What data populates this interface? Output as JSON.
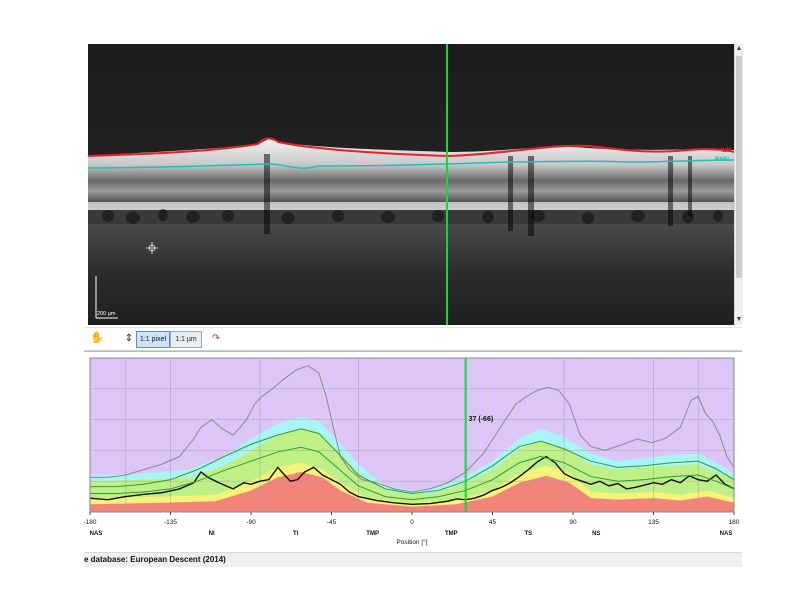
{
  "oct_view": {
    "layer_labels": {
      "ilm": "ILM",
      "rnfl": "RNFL"
    },
    "scale_bar_label": "200 µm",
    "colors": {
      "ilm_line": "#e8222a",
      "rnfl_line": "#19c4b4",
      "cursor_line": "#19d43c"
    }
  },
  "toolbar": {
    "hand_tool_icon": "hand-icon",
    "fit_icon": "vertical-fit-icon",
    "pixel_scale_label": "1:1 pixel",
    "micron_scale_label": "1:1 µm",
    "reset_icon": "reset-cursor-icon"
  },
  "chart_data": {
    "type": "line",
    "x_label": "Position [°]",
    "xlim": [
      -180,
      180
    ],
    "ylim": [
      0,
      200
    ],
    "x_ticks": [
      "-180",
      "-135",
      "-90",
      "-45",
      "0",
      "45",
      "90",
      "135",
      "180"
    ],
    "sector_labels": [
      {
        "x": -180,
        "label": "NAS"
      },
      {
        "x": -112,
        "label": "NI"
      },
      {
        "x": -65,
        "label": "TI"
      },
      {
        "x": -22,
        "label": "TMP"
      },
      {
        "x": 22,
        "label": "TMP"
      },
      {
        "x": 65,
        "label": "TS"
      },
      {
        "x": 103,
        "label": "NS"
      },
      {
        "x": 180,
        "label": "NAS"
      }
    ],
    "sector_dividers": [
      -160,
      -135,
      -85,
      -30,
      30,
      85,
      135,
      160
    ],
    "cursor": {
      "x": 30,
      "label": "37 (-66)"
    },
    "normative_bands": [
      {
        "name": "outside normal limits",
        "color": "#f2857a",
        "upper": [
          [
            -180,
            10
          ],
          [
            -140,
            12
          ],
          [
            -110,
            14
          ],
          [
            -90,
            28
          ],
          [
            -75,
            45
          ],
          [
            -62,
            52
          ],
          [
            -50,
            45
          ],
          [
            -40,
            28
          ],
          [
            -25,
            12
          ],
          [
            0,
            7
          ],
          [
            25,
            10
          ],
          [
            45,
            20
          ],
          [
            60,
            38
          ],
          [
            75,
            47
          ],
          [
            88,
            38
          ],
          [
            100,
            18
          ],
          [
            115,
            16
          ],
          [
            135,
            18
          ],
          [
            150,
            15
          ],
          [
            165,
            20
          ],
          [
            180,
            12
          ]
        ]
      },
      {
        "name": "borderline",
        "color": "#f7f27a",
        "upper": [
          [
            -180,
            18
          ],
          [
            -140,
            20
          ],
          [
            -110,
            22
          ],
          [
            -90,
            40
          ],
          [
            -75,
            58
          ],
          [
            -62,
            64
          ],
          [
            -50,
            55
          ],
          [
            -40,
            38
          ],
          [
            -25,
            18
          ],
          [
            0,
            12
          ],
          [
            25,
            16
          ],
          [
            45,
            28
          ],
          [
            60,
            50
          ],
          [
            75,
            60
          ],
          [
            88,
            50
          ],
          [
            100,
            26
          ],
          [
            115,
            24
          ],
          [
            135,
            26
          ],
          [
            150,
            22
          ],
          [
            165,
            28
          ],
          [
            180,
            18
          ]
        ]
      },
      {
        "name": "within normal limits",
        "color": "#bff088",
        "upper": [
          [
            -180,
            40
          ],
          [
            -150,
            42
          ],
          [
            -125,
            45
          ],
          [
            -105,
            60
          ],
          [
            -90,
            80
          ],
          [
            -75,
            100
          ],
          [
            -62,
            108
          ],
          [
            -52,
            102
          ],
          [
            -42,
            80
          ],
          [
            -30,
            50
          ],
          [
            -15,
            28
          ],
          [
            0,
            22
          ],
          [
            15,
            26
          ],
          [
            30,
            38
          ],
          [
            45,
            55
          ],
          [
            60,
            82
          ],
          [
            72,
            92
          ],
          [
            85,
            82
          ],
          [
            100,
            62
          ],
          [
            115,
            55
          ],
          [
            130,
            58
          ],
          [
            145,
            60
          ],
          [
            160,
            62
          ],
          [
            170,
            52
          ],
          [
            180,
            42
          ]
        ]
      },
      {
        "name": "above normal limits",
        "color": "#a9f4f4",
        "upper": [
          [
            -180,
            48
          ],
          [
            -150,
            50
          ],
          [
            -125,
            55
          ],
          [
            -105,
            72
          ],
          [
            -90,
            95
          ],
          [
            -75,
            115
          ],
          [
            -62,
            124
          ],
          [
            -52,
            118
          ],
          [
            -42,
            94
          ],
          [
            -30,
            62
          ],
          [
            -15,
            34
          ],
          [
            0,
            28
          ],
          [
            15,
            32
          ],
          [
            30,
            46
          ],
          [
            45,
            66
          ],
          [
            60,
            96
          ],
          [
            72,
            108
          ],
          [
            85,
            98
          ],
          [
            100,
            76
          ],
          [
            115,
            66
          ],
          [
            130,
            70
          ],
          [
            145,
            74
          ],
          [
            160,
            76
          ],
          [
            170,
            64
          ],
          [
            180,
            50
          ]
        ]
      }
    ],
    "background_color": "#dcc6f7",
    "series": [
      {
        "color": "#111111",
        "points": [
          [
            -180,
            18
          ],
          [
            -170,
            16
          ],
          [
            -160,
            20
          ],
          [
            -150,
            23
          ],
          [
            -140,
            25
          ],
          [
            -130,
            30
          ],
          [
            -122,
            38
          ],
          [
            -118,
            52
          ],
          [
            -114,
            45
          ],
          [
            -108,
            38
          ],
          [
            -100,
            30
          ],
          [
            -94,
            38
          ],
          [
            -90,
            36
          ],
          [
            -85,
            40
          ],
          [
            -80,
            42
          ],
          [
            -75,
            58
          ],
          [
            -72,
            50
          ],
          [
            -68,
            40
          ],
          [
            -64,
            42
          ],
          [
            -60,
            52
          ],
          [
            -55,
            58
          ],
          [
            -50,
            48
          ],
          [
            -45,
            42
          ],
          [
            -40,
            36
          ],
          [
            -35,
            26
          ],
          [
            -30,
            20
          ],
          [
            -20,
            15
          ],
          [
            -10,
            12
          ],
          [
            0,
            10
          ],
          [
            10,
            11
          ],
          [
            20,
            14
          ],
          [
            25,
            17
          ],
          [
            30,
            16
          ],
          [
            35,
            18
          ],
          [
            40,
            22
          ],
          [
            45,
            28
          ],
          [
            50,
            32
          ],
          [
            55,
            38
          ],
          [
            60,
            46
          ],
          [
            65,
            55
          ],
          [
            70,
            65
          ],
          [
            75,
            72
          ],
          [
            80,
            64
          ],
          [
            85,
            50
          ],
          [
            90,
            44
          ],
          [
            95,
            40
          ],
          [
            100,
            36
          ],
          [
            105,
            40
          ],
          [
            110,
            34
          ],
          [
            115,
            37
          ],
          [
            120,
            30
          ],
          [
            125,
            32
          ],
          [
            130,
            35
          ],
          [
            135,
            38
          ],
          [
            140,
            36
          ],
          [
            145,
            42
          ],
          [
            150,
            38
          ],
          [
            155,
            47
          ],
          [
            160,
            42
          ],
          [
            165,
            40
          ],
          [
            170,
            48
          ],
          [
            175,
            36
          ],
          [
            180,
            30
          ]
        ]
      },
      {
        "color": "#8a8a8a",
        "points": [
          [
            -180,
            45
          ],
          [
            -170,
            45
          ],
          [
            -160,
            48
          ],
          [
            -150,
            55
          ],
          [
            -140,
            62
          ],
          [
            -130,
            72
          ],
          [
            -122,
            95
          ],
          [
            -118,
            110
          ],
          [
            -112,
            120
          ],
          [
            -106,
            108
          ],
          [
            -100,
            100
          ],
          [
            -96,
            110
          ],
          [
            -92,
            122
          ],
          [
            -88,
            140
          ],
          [
            -84,
            150
          ],
          [
            -78,
            160
          ],
          [
            -72,
            172
          ],
          [
            -65,
            184
          ],
          [
            -58,
            190
          ],
          [
            -52,
            180
          ],
          [
            -48,
            150
          ],
          [
            -44,
            110
          ],
          [
            -40,
            72
          ],
          [
            -35,
            55
          ],
          [
            -28,
            42
          ],
          [
            -20,
            38
          ],
          [
            -10,
            30
          ],
          [
            0,
            26
          ],
          [
            10,
            30
          ],
          [
            20,
            38
          ],
          [
            30,
            52
          ],
          [
            40,
            76
          ],
          [
            50,
            112
          ],
          [
            58,
            140
          ],
          [
            64,
            150
          ],
          [
            70,
            158
          ],
          [
            76,
            162
          ],
          [
            82,
            158
          ],
          [
            88,
            140
          ],
          [
            94,
            100
          ],
          [
            100,
            85
          ],
          [
            108,
            80
          ],
          [
            118,
            88
          ],
          [
            126,
            95
          ],
          [
            134,
            90
          ],
          [
            142,
            96
          ],
          [
            150,
            110
          ],
          [
            156,
            145
          ],
          [
            160,
            150
          ],
          [
            164,
            128
          ],
          [
            168,
            118
          ],
          [
            172,
            100
          ],
          [
            176,
            72
          ],
          [
            180,
            58
          ]
        ]
      },
      {
        "color": "#2d9e2d",
        "points": [
          [
            -180,
            33
          ],
          [
            -165,
            33
          ],
          [
            -150,
            36
          ],
          [
            -135,
            42
          ],
          [
            -120,
            55
          ],
          [
            -105,
            72
          ],
          [
            -90,
            88
          ],
          [
            -75,
            100
          ],
          [
            -62,
            108
          ],
          [
            -52,
            102
          ],
          [
            -42,
            78
          ],
          [
            -30,
            48
          ],
          [
            -15,
            30
          ],
          [
            0,
            24
          ],
          [
            15,
            28
          ],
          [
            30,
            40
          ],
          [
            45,
            60
          ],
          [
            60,
            85
          ],
          [
            72,
            92
          ],
          [
            85,
            82
          ],
          [
            100,
            66
          ],
          [
            115,
            58
          ],
          [
            130,
            60
          ],
          [
            145,
            64
          ],
          [
            160,
            66
          ],
          [
            170,
            56
          ],
          [
            180,
            42
          ]
        ]
      },
      {
        "color": "#2d9e2d",
        "points": [
          [
            -180,
            24
          ],
          [
            -165,
            24
          ],
          [
            -150,
            26
          ],
          [
            -135,
            30
          ],
          [
            -120,
            40
          ],
          [
            -105,
            54
          ],
          [
            -90,
            66
          ],
          [
            -75,
            78
          ],
          [
            -62,
            84
          ],
          [
            -52,
            78
          ],
          [
            -42,
            58
          ],
          [
            -30,
            34
          ],
          [
            -15,
            20
          ],
          [
            0,
            16
          ],
          [
            15,
            20
          ],
          [
            30,
            28
          ],
          [
            45,
            42
          ],
          [
            60,
            64
          ],
          [
            72,
            72
          ],
          [
            85,
            64
          ],
          [
            100,
            46
          ],
          [
            115,
            40
          ],
          [
            130,
            42
          ],
          [
            145,
            46
          ],
          [
            160,
            48
          ],
          [
            170,
            40
          ],
          [
            180,
            30
          ]
        ]
      }
    ]
  },
  "footer": {
    "database_text": "e database: European Descent (2014)"
  }
}
